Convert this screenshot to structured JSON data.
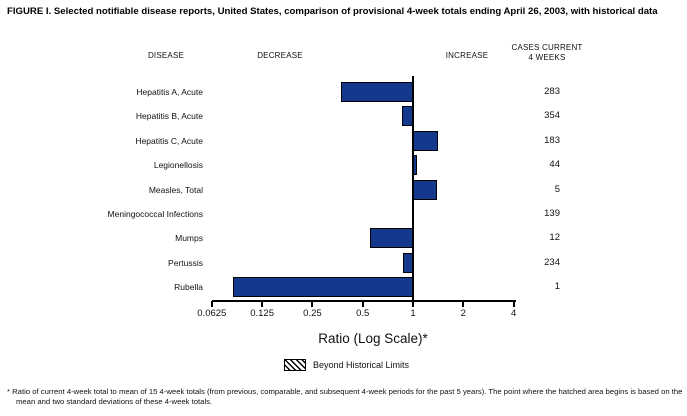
{
  "title": "FIGURE I. Selected notifiable disease reports, United States, comparison of provisional 4-week totals ending April 26, 2003, with historical data",
  "headers": {
    "disease": "DISEASE",
    "decrease": "DECREASE",
    "increase": "INCREASE",
    "cases_line1": "CASES CURRENT",
    "cases_line2": "4 WEEKS"
  },
  "chart_data": {
    "type": "bar",
    "orientation": "horizontal",
    "scale": "log2",
    "baseline": 1,
    "xlim": [
      0.0625,
      4
    ],
    "xlabel": "Ratio (Log Scale)*",
    "tick_labels": [
      "0.0625",
      "0.125",
      "0.25",
      "0.5",
      "1",
      "2",
      "4"
    ],
    "bar_color": "#13388C",
    "categories": [
      "Hepatitis A, Acute",
      "Hepatitis B, Acute",
      "Hepatitis C, Acute",
      "Legionellosis",
      "Measles, Total",
      "Meningococcal Infections",
      "Mumps",
      "Pertussis",
      "Rubella"
    ],
    "series": [
      {
        "name": "Ratio of current 4-week total to historical mean",
        "values": [
          0.37,
          0.86,
          1.41,
          1.05,
          1.4,
          0.99,
          0.55,
          0.87,
          0.084
        ]
      },
      {
        "name": "Cases current 4 weeks",
        "values": [
          283,
          354,
          183,
          44,
          5,
          139,
          12,
          234,
          1
        ]
      }
    ],
    "rows": [
      {
        "label": "Hepatitis A, Acute",
        "ratio": 0.37,
        "cases": "283"
      },
      {
        "label": "Hepatitis B, Acute",
        "ratio": 0.86,
        "cases": "354"
      },
      {
        "label": "Hepatitis C, Acute",
        "ratio": 1.41,
        "cases": "183"
      },
      {
        "label": "Legionellosis",
        "ratio": 1.05,
        "cases": "44"
      },
      {
        "label": "Measles, Total",
        "ratio": 1.4,
        "cases": "5"
      },
      {
        "label": "Meningococcal Infections",
        "ratio": 0.99,
        "cases": "139"
      },
      {
        "label": "Mumps",
        "ratio": 0.55,
        "cases": "12"
      },
      {
        "label": "Pertussis",
        "ratio": 0.87,
        "cases": "234"
      },
      {
        "label": "Rubella",
        "ratio": 0.084,
        "cases": "1"
      }
    ],
    "legend_position": "bottom"
  },
  "legend": {
    "swatch": "diagonal-hatch",
    "label": "Beyond Historical Limits"
  },
  "footnote": "* Ratio of current 4-week total to mean of 15 4-week totals (from previous, comparable, and subsequent 4-week periods for the past 5 years). The point where the hatched area begins is based on the mean and two standard deviations of these 4-week totals."
}
